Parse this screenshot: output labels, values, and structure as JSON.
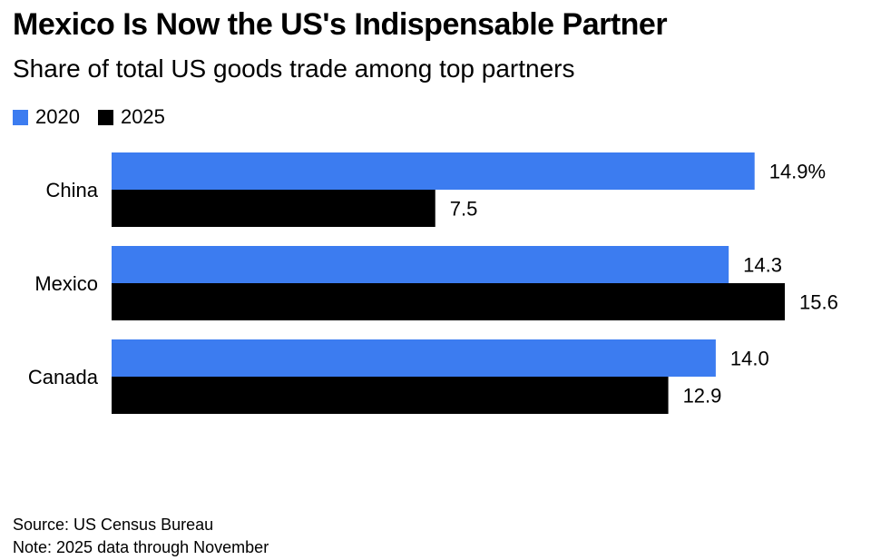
{
  "title": "Mexico Is Now the US's Indispensable Partner",
  "subtitle": "Share of total US goods trade among top partners",
  "legend": [
    {
      "label": "2020",
      "color": "#3c7cf0"
    },
    {
      "label": "2025",
      "color": "#000000"
    }
  ],
  "chart_data": {
    "type": "bar",
    "orientation": "horizontal",
    "categories": [
      "China",
      "Mexico",
      "Canada"
    ],
    "series": [
      {
        "name": "2020",
        "color": "#3c7cf0",
        "values": [
          14.9,
          14.3,
          14.0
        ],
        "labels": [
          "14.9%",
          "14.3",
          "14.0"
        ]
      },
      {
        "name": "2025",
        "color": "#000000",
        "values": [
          7.5,
          15.6,
          12.9
        ],
        "labels": [
          "7.5",
          "15.6",
          "12.9"
        ]
      }
    ],
    "xlim": [
      0,
      15.6
    ],
    "grid": false,
    "legend_position": "top-left"
  },
  "footer": {
    "source": "Source: US Census Bureau",
    "note": "Note: 2025 data through November"
  }
}
